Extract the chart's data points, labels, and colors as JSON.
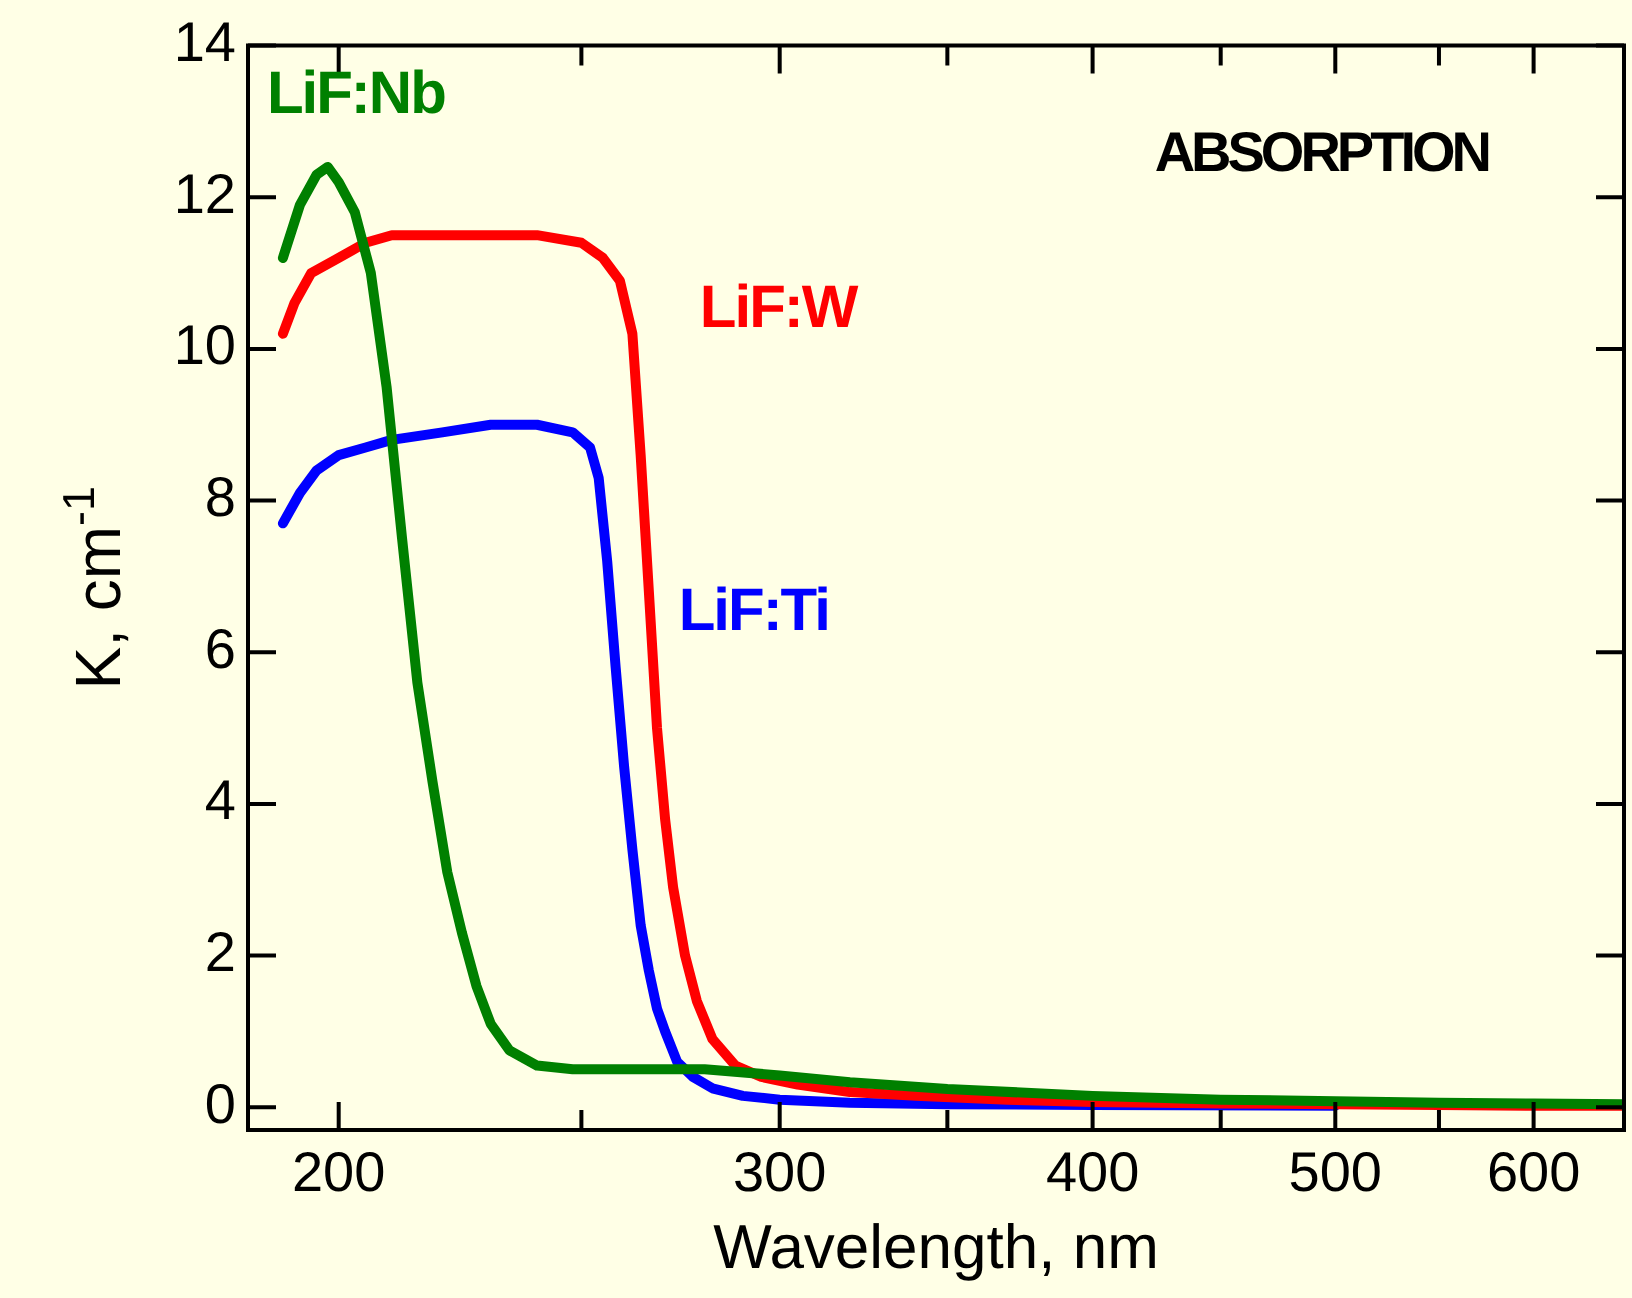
{
  "chart_data": {
    "type": "line",
    "xlabel": "Wavelength, nm",
    "ylabel": "K, cm$^{-1}$",
    "log": "x",
    "xlim": [
      184,
      652
    ],
    "xticks": [
      200,
      {
        "value": 250,
        "label": null
      },
      300,
      {
        "value": 350,
        "label": null
      },
      400,
      {
        "value": 450,
        "label": null
      },
      500,
      {
        "value": 550,
        "label": null
      },
      600
    ],
    "ylim": [
      -0.3,
      14
    ],
    "yticks": [
      0,
      2,
      4,
      6,
      8,
      10,
      12,
      14
    ],
    "grid": false,
    "legend": false,
    "marker": "none",
    "line_style": "solid",
    "annotations": [
      "ABSORPTION"
    ],
    "series": [
      {
        "name": "LiF:Nb",
        "color": "#008000",
        "x": [
          190,
          193,
          196,
          198,
          200,
          203,
          206,
          209,
          212,
          215,
          218,
          221,
          224,
          227,
          230,
          234,
          240,
          248,
          260,
          280,
          300,
          320,
          350,
          400,
          450,
          500,
          550,
          600,
          652
        ],
        "values": [
          11.2,
          11.9,
          12.3,
          12.4,
          12.2,
          11.8,
          11.0,
          9.5,
          7.5,
          5.6,
          4.3,
          3.1,
          2.3,
          1.6,
          1.1,
          0.75,
          0.55,
          0.5,
          0.5,
          0.5,
          0.42,
          0.33,
          0.24,
          0.15,
          0.1,
          0.08,
          0.06,
          0.05,
          0.04
        ]
      },
      {
        "name": "LiF:W",
        "color": "#ff0000",
        "x": [
          190,
          192,
          195,
          200,
          205,
          210,
          220,
          230,
          240,
          250,
          255,
          259,
          262,
          264,
          266,
          268,
          270,
          272,
          275,
          278,
          282,
          288,
          295,
          305,
          320,
          340,
          370,
          400,
          450,
          500,
          550,
          600,
          652
        ],
        "values": [
          10.2,
          10.6,
          11.0,
          11.2,
          11.4,
          11.5,
          11.5,
          11.5,
          11.5,
          11.4,
          11.2,
          10.9,
          10.2,
          8.6,
          6.8,
          5.0,
          3.8,
          2.9,
          2.0,
          1.4,
          0.9,
          0.55,
          0.4,
          0.3,
          0.2,
          0.15,
          0.1,
          0.07,
          0.05,
          0.04,
          0.03,
          0.02,
          0.02
        ]
      },
      {
        "name": "LiF:Ti",
        "color": "#0000ff",
        "x": [
          190,
          193,
          196,
          200,
          205,
          210,
          220,
          230,
          240,
          248,
          252,
          254,
          256,
          258,
          260,
          262,
          264,
          266,
          268,
          270,
          273,
          277,
          282,
          290,
          300,
          320,
          350,
          400,
          500
        ],
        "values": [
          7.7,
          8.1,
          8.4,
          8.6,
          8.7,
          8.8,
          8.9,
          9.0,
          9.0,
          8.9,
          8.7,
          8.3,
          7.2,
          5.8,
          4.5,
          3.4,
          2.4,
          1.8,
          1.3,
          1.0,
          0.6,
          0.4,
          0.25,
          0.15,
          0.1,
          0.06,
          0.04,
          0.03,
          0.02
        ]
      }
    ]
  }
}
